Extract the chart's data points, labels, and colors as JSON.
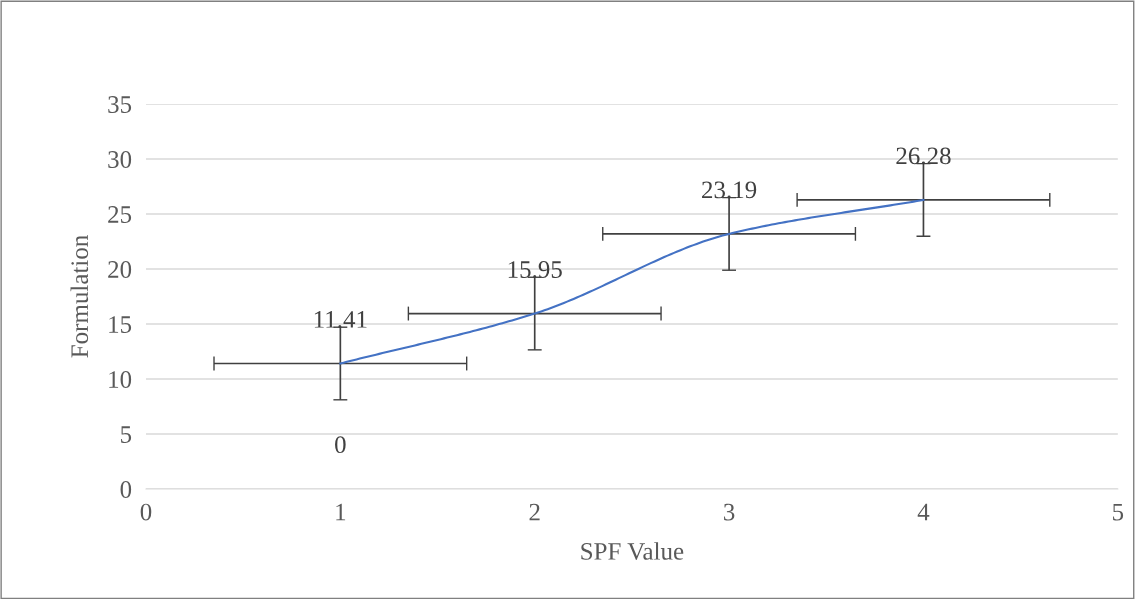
{
  "chart_data": {
    "type": "line",
    "xlabel": "SPF Value",
    "ylabel": "Formulation",
    "x": [
      1,
      2,
      3,
      4
    ],
    "series": [
      {
        "color": "#4472c4",
        "values": [
          11.41,
          15.95,
          23.19,
          26.28
        ],
        "errors": [
          3.3,
          3.3,
          3.3,
          3.3
        ],
        "xerrors": [
          0.65,
          0.65,
          0.65,
          0.65
        ]
      }
    ],
    "data_labels": true,
    "annotations": [
      "0"
    ],
    "xlim": [
      0,
      5
    ],
    "xticks": [
      0,
      1,
      2,
      3,
      4,
      5
    ],
    "ylim": [
      0,
      35
    ],
    "yticks": [
      0,
      5,
      10,
      15,
      20,
      25,
      30,
      35
    ],
    "grid": "y",
    "legend": false,
    "marker": "none",
    "line_style": "solid"
  }
}
